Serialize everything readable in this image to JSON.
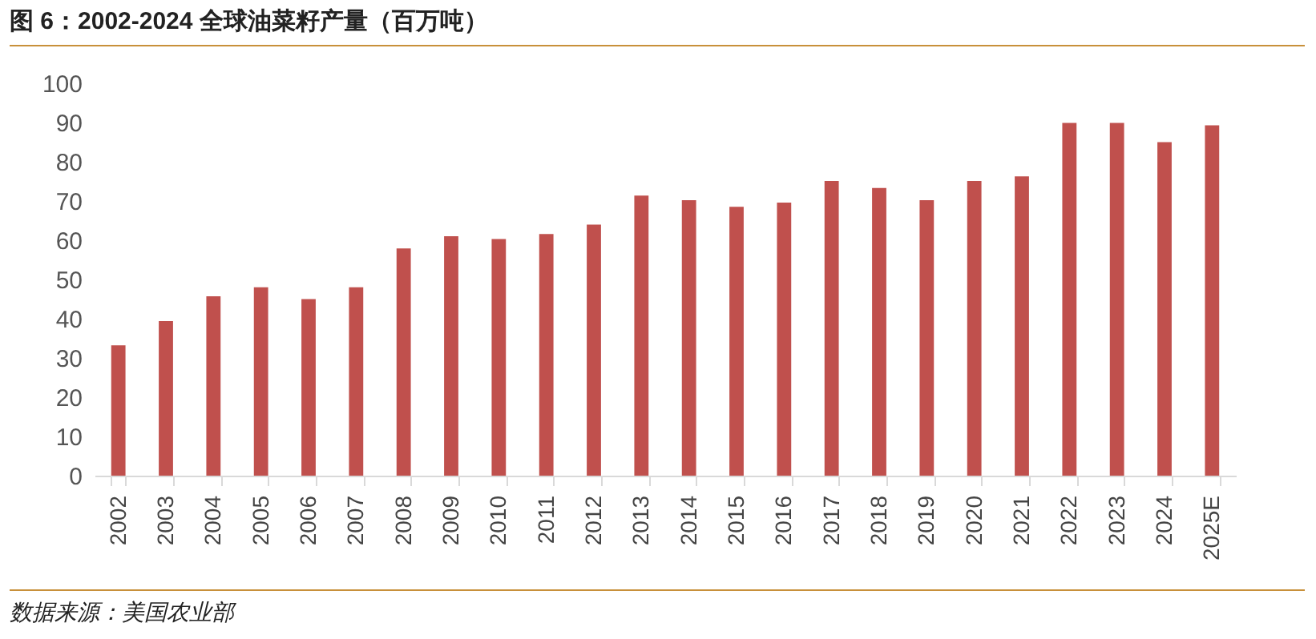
{
  "chart_data": {
    "type": "bar",
    "title": "图 6：2002-2024 全球油菜籽产量（百万吨）",
    "categories": [
      "2002",
      "2003",
      "2004",
      "2005",
      "2006",
      "2007",
      "2008",
      "2009",
      "2010",
      "2011",
      "2012",
      "2013",
      "2014",
      "2015",
      "2016",
      "2017",
      "2018",
      "2019",
      "2020",
      "2021",
      "2022",
      "2023",
      "2024",
      "2025E"
    ],
    "values": [
      33.2,
      39.4,
      45.7,
      48.0,
      45.0,
      48.0,
      57.9,
      61.0,
      60.3,
      61.6,
      64.0,
      71.4,
      70.2,
      68.5,
      69.6,
      75.1,
      73.3,
      70.2,
      75.1,
      76.3,
      89.9,
      89.9,
      85.0,
      89.3
    ],
    "color": "#c0504d",
    "ylim": [
      0,
      100
    ],
    "yticks": [
      0,
      10,
      20,
      30,
      40,
      50,
      60,
      70,
      80,
      90,
      100
    ],
    "annotations": [
      "数据来源：美国农业部"
    ]
  }
}
